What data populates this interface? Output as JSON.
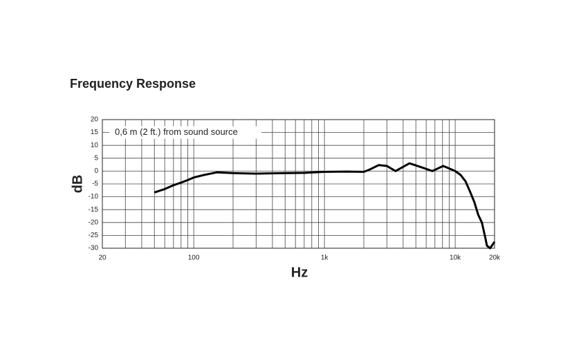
{
  "chart_data": {
    "type": "line",
    "title": "Frequency Response",
    "x_label": "Hz",
    "y_label": "dB",
    "annotation": "0,6 m (2 ft.) from sound source",
    "x_log": true,
    "xlim": [
      20,
      20000
    ],
    "xticks": [
      20,
      100,
      {
        "value": 1000,
        "label": "1k"
      },
      {
        "value": 10000,
        "label": "10k"
      },
      {
        "value": 20000,
        "label": "20k"
      }
    ],
    "xgrid": [
      30,
      40,
      50,
      60,
      70,
      80,
      90,
      200,
      300,
      400,
      500,
      600,
      700,
      800,
      900,
      2000,
      3000,
      4000,
      5000,
      6000,
      7000,
      8000,
      9000
    ],
    "ylim": [
      -30,
      20
    ],
    "yticks": [
      20,
      15,
      10,
      5,
      0,
      -5,
      -10,
      -15,
      -20,
      -25,
      -30
    ],
    "grid": true,
    "series": [
      {
        "color": "#000000",
        "x": [
          50,
          60,
          70,
          80,
          90,
          100,
          120,
          150,
          200,
          300,
          500,
          700,
          1000,
          1500,
          2000,
          2200,
          2600,
          3000,
          3500,
          4470,
          5500,
          6700,
          8100,
          10000,
          11000,
          12000,
          13000,
          14000,
          15000,
          16000,
          17000,
          17500,
          18500,
          20000
        ],
        "values": [
          -8.3,
          -7,
          -5.5,
          -4.5,
          -3.5,
          -2.5,
          -1.5,
          -0.5,
          -0.8,
          -1,
          -0.8,
          -0.7,
          -0.3,
          -0.2,
          -0.3,
          0.5,
          2.3,
          2,
          0,
          3,
          1.5,
          0,
          2,
          0,
          -1.5,
          -4,
          -8,
          -12,
          -17,
          -20,
          -26,
          -29,
          -30,
          -27.5
        ]
      }
    ]
  }
}
